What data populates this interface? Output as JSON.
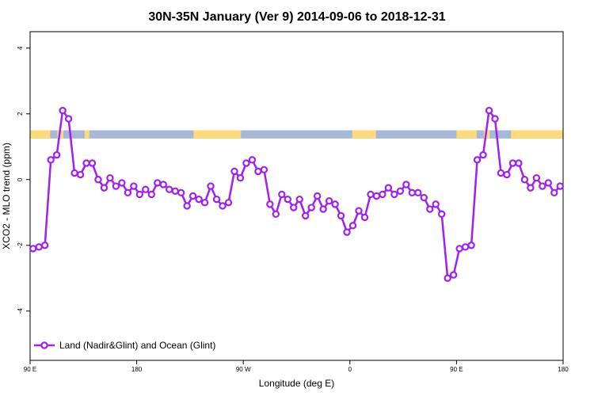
{
  "chart_data": {
    "type": "line",
    "title": "30N-35N January (Ver 9)   2014-09-06 to 2018-12-31",
    "xlabel": "Longitude (deg E)",
    "ylabel": "XCO2 - MLO trend (ppm)",
    "xlim": [
      90,
      540
    ],
    "ylim": [
      -5.5,
      4.5
    ],
    "x_ticks": [
      {
        "value": 90,
        "label": "90 E"
      },
      {
        "value": 180,
        "label": "180"
      },
      {
        "value": 270,
        "label": "90 W"
      },
      {
        "value": 360,
        "label": "0"
      },
      {
        "value": 450,
        "label": "90 E"
      },
      {
        "value": 540,
        "label": "180"
      }
    ],
    "y_ticks": [
      {
        "value": 4,
        "label": "4"
      },
      {
        "value": 2,
        "label": "2"
      },
      {
        "value": 0,
        "label": "0"
      },
      {
        "value": -2,
        "label": "-2"
      },
      {
        "value": -4,
        "label": "-4"
      }
    ],
    "grid": false,
    "legend_position": "bottom-left",
    "series": [
      {
        "name": "Land (Nadir&Glint) and Ocean (Glint)",
        "color": "#a020f0",
        "x": [
          92.5,
          97.5,
          102.5,
          107.5,
          112.5,
          117.5,
          122.5,
          127.5,
          132.5,
          137.5,
          142.5,
          147.5,
          152.5,
          157.5,
          162.5,
          167.5,
          172.5,
          177.5,
          182.5,
          187.5,
          192.5,
          197.5,
          202.5,
          207.5,
          212.5,
          217.5,
          222.5,
          227.5,
          232.5,
          237.5,
          242.5,
          247.5,
          252.5,
          257.5,
          262.5,
          267.5,
          272.5,
          277.5,
          282.5,
          287.5,
          292.5,
          297.5,
          302.5,
          307.5,
          312.5,
          317.5,
          322.5,
          327.5,
          332.5,
          337.5,
          342.5,
          347.5,
          352.5,
          357.5,
          362.5,
          367.5,
          372.5,
          377.5,
          382.5,
          387.5,
          392.5,
          397.5,
          402.5,
          407.5,
          412.5,
          417.5,
          422.5,
          427.5,
          432.5,
          437.5,
          442.5,
          447.5,
          452.5,
          457.5,
          462.5,
          467.5,
          472.5,
          477.5,
          482.5,
          487.5,
          492.5,
          497.5,
          502.5,
          507.5,
          512.5,
          517.5,
          522.5,
          527.5,
          532.5,
          537.5
        ],
        "y": [
          -2.1,
          -2.05,
          -2.0,
          0.6,
          0.75,
          2.1,
          1.85,
          0.2,
          0.15,
          0.5,
          0.5,
          0.0,
          -0.25,
          0.05,
          -0.2,
          -0.1,
          -0.4,
          -0.2,
          -0.45,
          -0.3,
          -0.45,
          -0.1,
          -0.15,
          -0.3,
          -0.35,
          -0.4,
          -0.8,
          -0.5,
          -0.6,
          -0.7,
          -0.2,
          -0.6,
          -0.8,
          -0.7,
          0.25,
          0.05,
          0.5,
          0.6,
          0.25,
          0.3,
          -0.75,
          -1.05,
          -0.45,
          -0.6,
          -0.85,
          -0.6,
          -1.1,
          -0.85,
          -0.5,
          -0.9,
          -0.65,
          -0.75,
          -1.1,
          -1.6,
          -1.4,
          -0.95,
          -1.15,
          -0.45,
          -0.5,
          -0.45,
          -0.25,
          -0.45,
          -0.35,
          -0.15,
          -0.4,
          -0.4,
          -0.55,
          -0.9,
          -0.75,
          -1.05,
          -3.0,
          -2.9,
          -2.1,
          -2.05,
          -2.0,
          0.6,
          0.75,
          2.1,
          1.85,
          0.2,
          0.15,
          0.5,
          0.5,
          0.0,
          -0.25,
          0.05,
          -0.2,
          -0.1,
          -0.4,
          -0.2
        ]
      }
    ],
    "band": {
      "y_range": [
        1.25,
        1.5
      ],
      "ocean_color": "#a5b8d8",
      "land_color": "#ffd97a",
      "land_segments": [
        [
          90,
          107
        ],
        [
          113,
          118
        ],
        [
          136,
          140
        ],
        [
          228,
          268
        ],
        [
          362,
          382
        ],
        [
          450,
          467
        ],
        [
          473,
          478
        ],
        [
          496,
          540
        ]
      ]
    }
  }
}
